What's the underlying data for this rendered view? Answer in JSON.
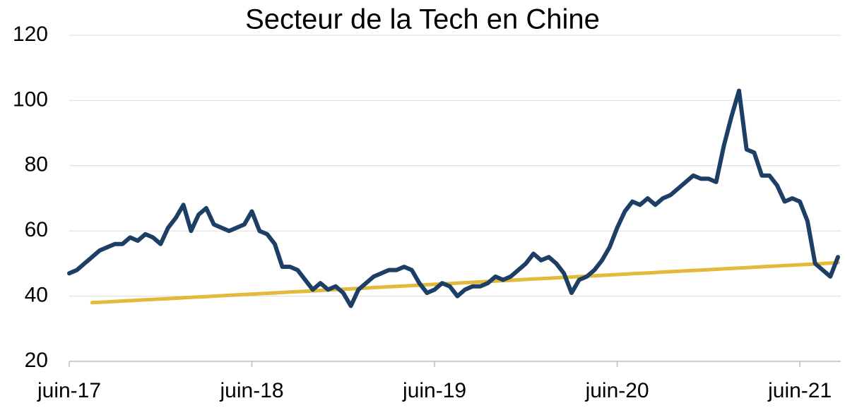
{
  "chart_data": {
    "type": "line",
    "title": "Secteur de la Tech en Chine",
    "categories": [
      "juin-17",
      null,
      null,
      null,
      null,
      null,
      null,
      null,
      null,
      null,
      null,
      null,
      null,
      null,
      null,
      null,
      null,
      null,
      null,
      null,
      null,
      null,
      null,
      null,
      "juin-18",
      null,
      null,
      null,
      null,
      null,
      null,
      null,
      null,
      null,
      null,
      null,
      null,
      null,
      null,
      null,
      null,
      null,
      null,
      null,
      null,
      null,
      null,
      null,
      "juin-19",
      null,
      null,
      null,
      null,
      null,
      null,
      null,
      null,
      null,
      null,
      null,
      null,
      null,
      null,
      null,
      null,
      null,
      null,
      null,
      null,
      null,
      null,
      null,
      "juin-20",
      null,
      null,
      null,
      null,
      null,
      null,
      null,
      null,
      null,
      null,
      null,
      null,
      null,
      null,
      null,
      null,
      null,
      null,
      null,
      null,
      null,
      null,
      null,
      "juin-21",
      null,
      null,
      null,
      null,
      null
    ],
    "series": [
      {
        "color": "#1d3f66",
        "values": [
          47,
          48,
          50,
          52,
          54,
          55,
          56,
          56,
          58,
          57,
          59,
          58,
          56,
          61,
          64,
          68,
          60,
          65,
          67,
          62,
          61,
          60,
          61,
          62,
          66,
          60,
          59,
          56,
          49,
          49,
          48,
          45,
          42,
          44,
          42,
          43,
          41,
          37,
          42,
          44,
          46,
          47,
          48,
          48,
          49,
          48,
          44,
          41,
          42,
          44,
          43,
          40,
          42,
          43,
          43,
          44,
          46,
          45,
          46,
          48,
          50,
          53,
          51,
          52,
          50,
          47,
          41,
          45,
          46,
          48,
          51,
          55,
          61,
          66,
          69,
          68,
          70,
          68,
          70,
          71,
          73,
          75,
          77,
          76,
          76,
          75,
          86,
          95,
          103,
          85,
          84,
          77,
          77,
          74,
          69,
          70,
          69,
          63,
          50,
          48,
          46,
          52
        ]
      },
      {
        "color": "#e2b93b",
        "values": [
          null,
          null,
          null,
          38,
          38.125,
          38.25,
          38.375,
          38.5,
          38.625,
          38.75,
          38.875,
          39,
          39.125,
          39.25,
          39.375,
          39.5,
          39.625,
          39.75,
          39.875,
          40,
          40.125,
          40.25,
          40.375,
          40.5,
          40.625,
          40.75,
          40.875,
          41,
          41.125,
          41.25,
          41.375,
          41.5,
          41.625,
          41.75,
          41.875,
          42,
          42.125,
          42.25,
          42.375,
          42.5,
          42.625,
          42.75,
          42.875,
          43,
          43.125,
          43.25,
          43.375,
          43.5,
          43.625,
          43.75,
          43.875,
          44,
          44.125,
          44.25,
          44.375,
          44.5,
          44.625,
          44.75,
          44.875,
          45,
          45.125,
          45.25,
          45.375,
          45.5,
          45.625,
          45.75,
          45.875,
          46,
          46.125,
          46.25,
          46.375,
          46.5,
          46.625,
          46.75,
          46.875,
          47,
          47.125,
          47.25,
          47.375,
          47.5,
          47.625,
          47.75,
          47.875,
          48,
          48.125,
          48.25,
          48.375,
          48.5,
          48.625,
          48.75,
          48.875,
          49,
          49.125,
          49.25,
          49.375,
          49.5,
          49.625,
          49.75,
          49.875,
          50,
          50.125,
          50.25
        ]
      }
    ],
    "ylim": [
      20,
      120
    ],
    "yticks": [
      20,
      40,
      60,
      80,
      100,
      120
    ],
    "grid": true
  }
}
